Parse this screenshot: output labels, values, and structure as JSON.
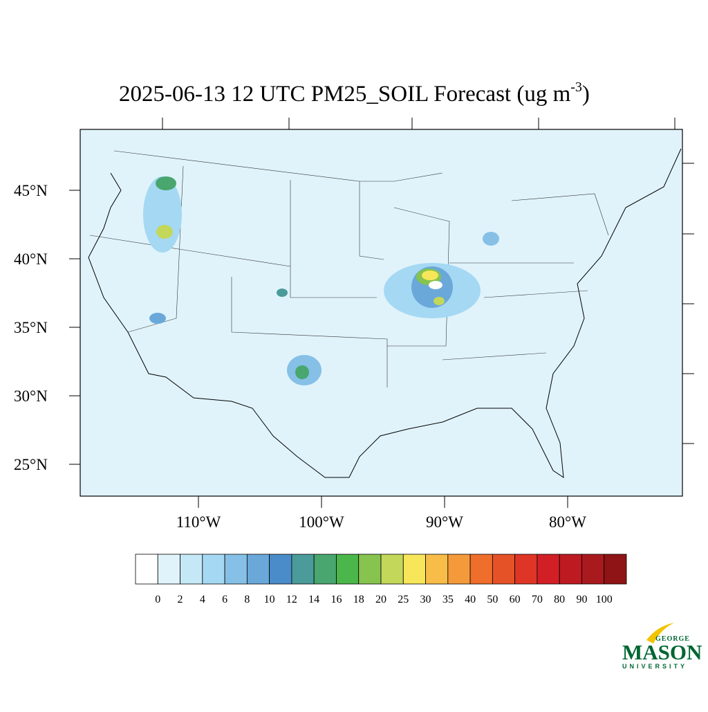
{
  "title": {
    "main": "2025-06-13 12 UTC PM25_SOIL Forecast (ug m",
    "superscript": "-3",
    "end": ")"
  },
  "map": {
    "lat_ticks": [
      {
        "value": 45,
        "label": "45°N"
      },
      {
        "value": 40,
        "label": "40°N"
      },
      {
        "value": 35,
        "label": "35°N"
      },
      {
        "value": 30,
        "label": "30°N"
      },
      {
        "value": 25,
        "label": "25°N"
      }
    ],
    "lon_ticks": [
      {
        "value": -110,
        "label": "110°W"
      },
      {
        "value": -100,
        "label": "100°W"
      },
      {
        "value": -90,
        "label": "90°W"
      },
      {
        "value": -80,
        "label": "80°W"
      }
    ]
  },
  "colorbar": {
    "levels": [
      0,
      2,
      4,
      6,
      8,
      10,
      12,
      14,
      16,
      18,
      20,
      25,
      30,
      35,
      40,
      50,
      60,
      70,
      80,
      90,
      100
    ],
    "colors": [
      "#ffffff",
      "#e0f3fb",
      "#c5e8f7",
      "#a5d8f3",
      "#86c0e6",
      "#6aa8da",
      "#4a8cc9",
      "#4a9b9a",
      "#48a66e",
      "#4bb649",
      "#86c34f",
      "#c3d75a",
      "#f7e65a",
      "#f8bd48",
      "#f59a3a",
      "#ef6e2b",
      "#e65227",
      "#de3526",
      "#d21f26",
      "#be1a22",
      "#a81a1e",
      "#8f1416"
    ]
  },
  "logo": {
    "top": "GEORGE",
    "main": "MASON",
    "bottom": "UNIVERSITY"
  }
}
